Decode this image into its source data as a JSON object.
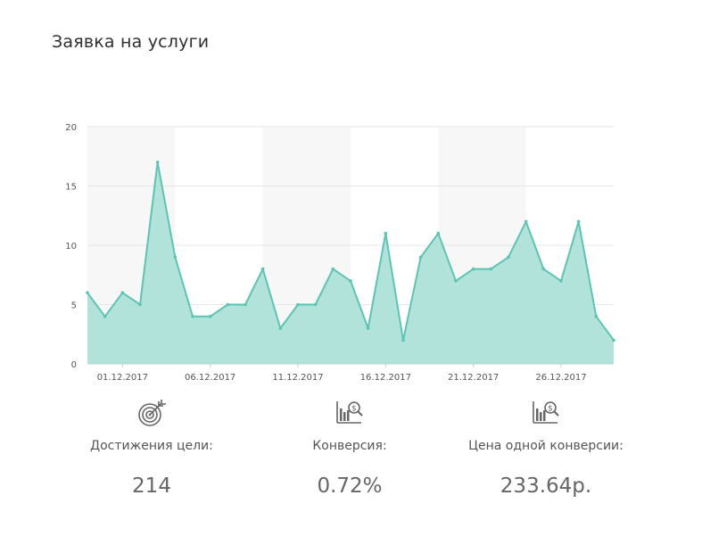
{
  "title": "Заявка на услуги",
  "chart_data": {
    "type": "area",
    "title": "Заявка на услуги",
    "xlabel": "",
    "ylabel": "",
    "ylim": [
      0,
      20
    ],
    "yticks": [
      0,
      5,
      10,
      15,
      20
    ],
    "grid": true,
    "x": [
      "29.11.2017",
      "30.11.2017",
      "01.12.2017",
      "02.12.2017",
      "03.12.2017",
      "04.12.2017",
      "05.12.2017",
      "06.12.2017",
      "07.12.2017",
      "08.12.2017",
      "09.12.2017",
      "10.12.2017",
      "11.12.2017",
      "12.12.2017",
      "13.12.2017",
      "14.12.2017",
      "15.12.2017",
      "16.12.2017",
      "17.12.2017",
      "18.12.2017",
      "19.12.2017",
      "20.12.2017",
      "21.12.2017",
      "22.12.2017",
      "23.12.2017",
      "24.12.2017",
      "25.12.2017",
      "26.12.2017",
      "27.12.2017",
      "28.12.2017",
      "29.12.2017"
    ],
    "xtick_labels": [
      "01.12.2017",
      "06.12.2017",
      "11.12.2017",
      "16.12.2017",
      "21.12.2017",
      "26.12.2017"
    ],
    "series": [
      {
        "values": [
          6,
          4,
          6,
          5,
          17,
          9,
          4,
          4,
          5,
          5,
          8,
          3,
          5,
          5,
          8,
          7,
          3,
          11,
          2,
          9,
          11,
          7,
          8,
          8,
          9,
          12,
          8,
          7,
          12,
          4,
          2
        ]
      }
    ],
    "colors": {
      "line": "#5cc5b2",
      "fill": "#a8e0d6",
      "band": "#f7f7f7",
      "grid": "#e6e6e6"
    }
  },
  "stats": [
    {
      "icon": "target-icon",
      "label": "Достижения цели:",
      "value": "214"
    },
    {
      "icon": "chart-dollar-icon",
      "label": "Конверсия:",
      "value": "0.72%"
    },
    {
      "icon": "chart-dollar-icon",
      "label": "Цена одной конверсии:",
      "value": "233.64р."
    }
  ]
}
